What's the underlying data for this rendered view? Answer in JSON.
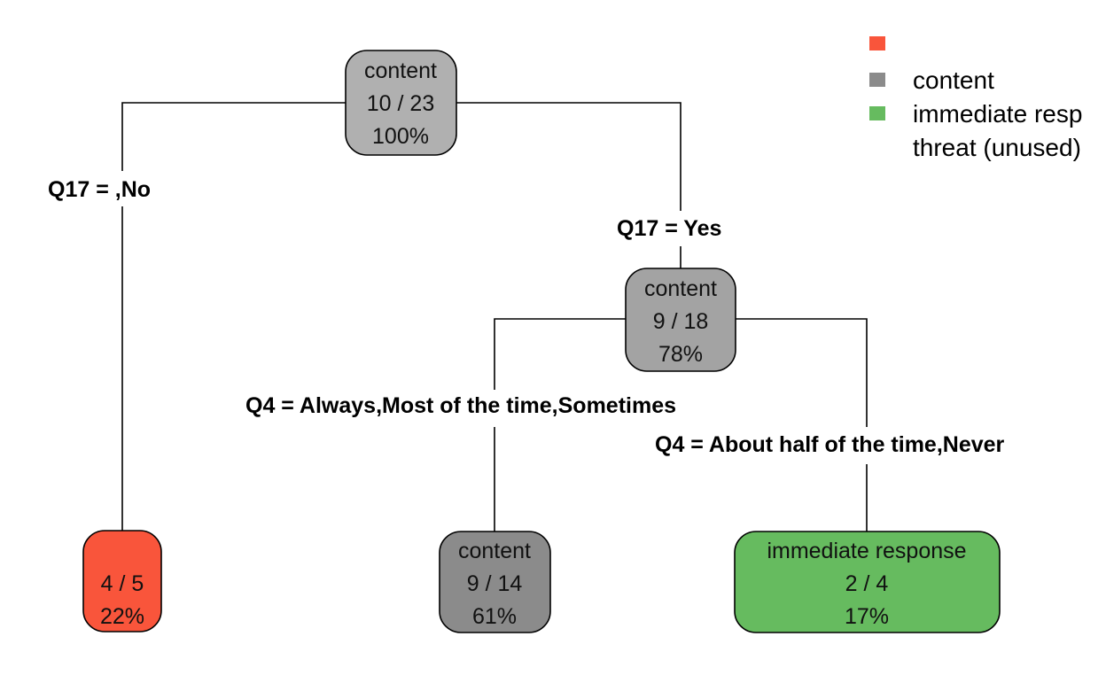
{
  "legend": {
    "items": [
      {
        "label": "",
        "color": "#f9553b"
      },
      {
        "label": "content",
        "color": "#8b8b8b"
      },
      {
        "label": "immediate resp",
        "color": "#66bb5f"
      },
      {
        "label": "threat (unused)",
        "color": ""
      }
    ]
  },
  "colors": {
    "root": "#b0b0b0",
    "node_yes": "#a3a3a3",
    "leaf_red": "#f9553b",
    "leaf_grey": "#8b8b8b",
    "leaf_green": "#66bb5f"
  },
  "nodes": {
    "root": {
      "line1": "content",
      "line2": "10 / 23",
      "line3": "100%"
    },
    "node_yes": {
      "line1": "content",
      "line2": "9 / 18",
      "line3": "78%"
    },
    "leaf_no": {
      "line1": "",
      "line2": "4 / 5",
      "line3": "22%"
    },
    "leaf_content": {
      "line1": "content",
      "line2": "9 / 14",
      "line3": "61%"
    },
    "leaf_immediate": {
      "line1": "immediate response",
      "line2": "2 / 4",
      "line3": "17%"
    }
  },
  "edges": {
    "q17_no": "Q17 = ,No",
    "q17_yes": "Q17 = Yes",
    "q4_left": "Q4 = Always,Most of the time,Sometimes",
    "q4_right": "Q4 = About half of the time,Never"
  }
}
